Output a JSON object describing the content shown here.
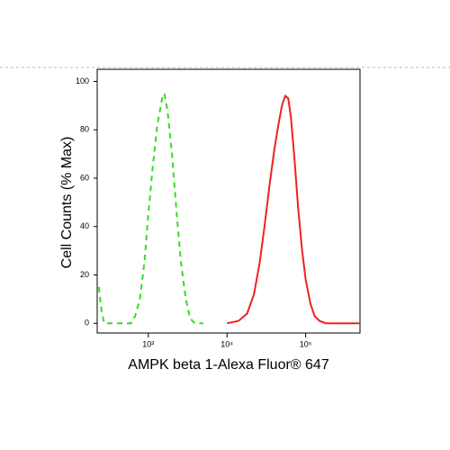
{
  "chart_data": {
    "type": "line",
    "xlabel": "AMPK beta 1-Alexa Fluor® 647",
    "ylabel": "Cell Counts (% Max)",
    "xscale": "log",
    "xlim": [
      224,
      490000
    ],
    "ylim": [
      -4,
      105
    ],
    "xticks": [
      {
        "value": 1000,
        "label": "10³"
      },
      {
        "value": 10000,
        "label": "10⁴"
      },
      {
        "value": 100000,
        "label": "10⁵"
      }
    ],
    "yticks": [
      0,
      20,
      40,
      60,
      80,
      100
    ],
    "series": [
      {
        "color": "#33dd22",
        "dash": true,
        "x": [
          235,
          255,
          275,
          600,
          680,
          780,
          890,
          1000,
          1140,
          1300,
          1500,
          1600,
          1750,
          2000,
          2300,
          2600,
          3000,
          3400,
          3900,
          5000
        ],
        "values": [
          15,
          5,
          0,
          0,
          3,
          10,
          25,
          45,
          65,
          82,
          93,
          95,
          88,
          70,
          45,
          25,
          10,
          2,
          0,
          0
        ]
      },
      {
        "color": "#ee2222",
        "dash": false,
        "x": [
          10000,
          14000,
          18000,
          22000,
          26000,
          30000,
          35000,
          40000,
          45000,
          50000,
          55000,
          60000,
          65000,
          72000,
          80000,
          90000,
          100000,
          115000,
          130000,
          150000,
          180000,
          490000
        ],
        "values": [
          0,
          1,
          4,
          12,
          25,
          40,
          58,
          72,
          82,
          90,
          94,
          93,
          85,
          68,
          48,
          30,
          18,
          8,
          3,
          1,
          0,
          0
        ]
      }
    ]
  }
}
